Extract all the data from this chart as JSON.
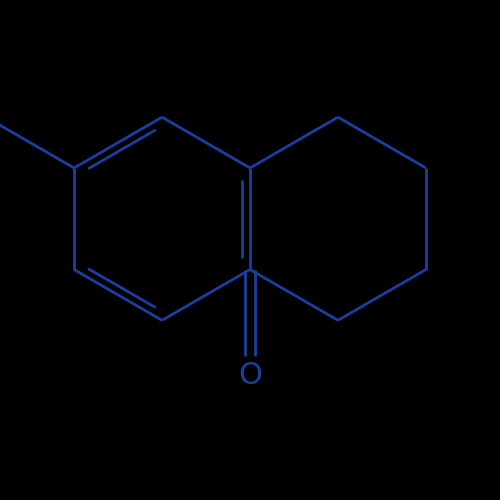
{
  "background_color": "#000000",
  "bond_color": "#1a3fa0",
  "line_width": 2.0,
  "font_size": 22,
  "fig_width": 5.0,
  "fig_height": 5.0,
  "dpi": 100,
  "x_min": -3.2,
  "x_max": 3.2,
  "y_min": -2.8,
  "y_max": 2.0
}
